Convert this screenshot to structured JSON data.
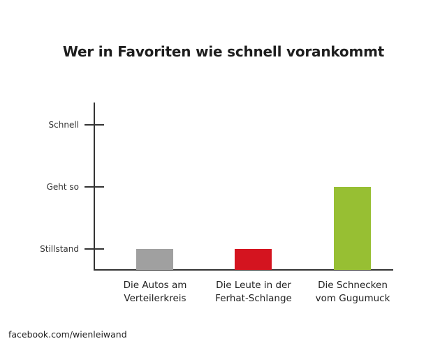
{
  "chart_data": {
    "type": "bar",
    "title": "Wer in Favoriten wie schnell vorankommt",
    "xlabel": "",
    "ylabel": "",
    "y_ticks": [
      "Stillstand",
      "Geht so",
      "Schnell"
    ],
    "y_tick_values": [
      1,
      2,
      3
    ],
    "ylim": [
      0,
      3.3
    ],
    "categories": [
      [
        "Die Autos am",
        "Verteilerkreis"
      ],
      [
        "Die Leute in der",
        "Ferhat-Schlange"
      ],
      [
        "Die Schnecken",
        "vom Gugumuck"
      ]
    ],
    "values": [
      1,
      1,
      2
    ],
    "value_labels": [
      "Stillstand",
      "Stillstand",
      "Geht so"
    ],
    "colors": [
      "#a0a0a0",
      "#d4141f",
      "#97bf33"
    ],
    "grid": false,
    "legend": "none"
  },
  "footer": {
    "source": "facebook.com/wienleiwand"
  }
}
